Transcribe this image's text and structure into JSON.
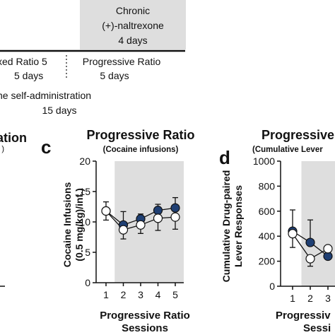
{
  "timeline": {
    "chronic_label_lines": [
      "Chronic",
      "(+)-naltrexone",
      "4 days"
    ],
    "fixed_ratio_lines": [
      "xed Ratio 5",
      "5 days"
    ],
    "progressive_ratio_lines": [
      "Progressive Ratio",
      "5 days"
    ],
    "self_admin_lines": [
      "ne self-administration",
      "15 days"
    ]
  },
  "partial_panel_left": {
    "title": "ation",
    "subtitle_fragment": ")"
  },
  "colors": {
    "filled_series": "#1f3f73",
    "open_series": "#ffffff",
    "shade": "#dedede",
    "axis": "#111111"
  },
  "chart_data": [
    {
      "panel_letter": "c",
      "type": "line",
      "title": "Progressive Ratio",
      "subtitle": "(Cocaine infusions)",
      "ylabel_lines": [
        "Cocaine Infusions",
        "(0.5 mg/kg)/inf.)"
      ],
      "xlabel_lines": [
        "Progressive Ratio",
        "Sessions"
      ],
      "x": [
        1,
        2,
        3,
        4,
        5
      ],
      "xticks": [
        "1",
        "2",
        "3",
        "4",
        "5"
      ],
      "ylim": [
        0,
        20
      ],
      "yticks": [
        "0",
        "5",
        "10",
        "15",
        "20"
      ],
      "shaded_from_session": 2,
      "series": [
        {
          "style": "filled",
          "values": [
            11.8,
            9.5,
            10.5,
            11.9,
            12.3
          ],
          "err": [
            1.5,
            2.2,
            0.8,
            1.0,
            1.7
          ]
        },
        {
          "style": "open",
          "values": [
            11.8,
            8.7,
            9.5,
            10.6,
            10.8
          ],
          "err": [
            1.5,
            1.5,
            1.4,
            2.0,
            2.0
          ]
        }
      ]
    },
    {
      "panel_letter": "d",
      "type": "line",
      "title": "Progressive",
      "subtitle": "(Cumulative Lever",
      "ylabel_lines": [
        "Cumulative Drug-paired",
        "Lever Responses"
      ],
      "xlabel_lines": [
        "Progressiv",
        "Sessi"
      ],
      "x": [
        1,
        2,
        3
      ],
      "xticks": [
        "1",
        "2",
        "3"
      ],
      "ylim": [
        0,
        1000
      ],
      "yticks": [
        "0",
        "200",
        "400",
        "600",
        "800",
        "1000"
      ],
      "shaded_from_session": 2,
      "series": [
        {
          "style": "filled",
          "values": [
            440,
            350,
            240
          ],
          "err": [
            170,
            180,
            80
          ]
        },
        {
          "style": "open",
          "values": [
            420,
            220,
            300
          ],
          "err": [
            110,
            60,
            70
          ]
        }
      ]
    }
  ]
}
